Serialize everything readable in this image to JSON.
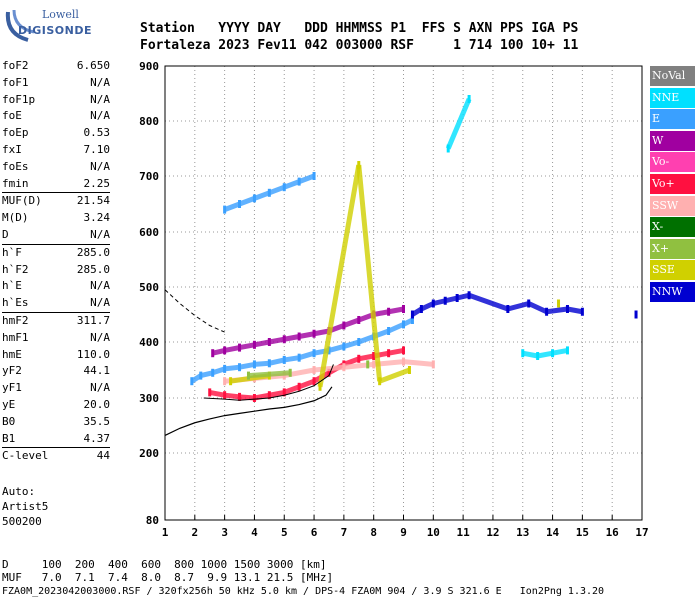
{
  "logo": {
    "line1": "Lowell",
    "line2": "DIGISONDE"
  },
  "header": {
    "line1": "Station   YYYY DAY   DDD HHMMSS P1  FFS S AXN PPS IGA PS",
    "line2": "Fortaleza 2023 Fev11 042 003000 RSF     1 714 100 10+ 11"
  },
  "params": [
    {
      "name": "foF2",
      "value": "6.650"
    },
    {
      "name": "foF1",
      "value": "N/A"
    },
    {
      "name": "foF1p",
      "value": "N/A"
    },
    {
      "name": "foE",
      "value": "N/A"
    },
    {
      "name": "foEp",
      "value": "0.53"
    },
    {
      "name": "fxI",
      "value": "7.10"
    },
    {
      "name": "foEs",
      "value": "N/A"
    },
    {
      "name": "fmin",
      "value": "2.25"
    },
    {
      "name": "MUF(D)",
      "value": "21.54"
    },
    {
      "name": "M(D)",
      "value": "3.24"
    },
    {
      "name": "D",
      "value": "N/A"
    },
    {
      "name": "h`F",
      "value": "285.0"
    },
    {
      "name": "h`F2",
      "value": "285.0"
    },
    {
      "name": "h`E",
      "value": "N/A"
    },
    {
      "name": "h`Es",
      "value": "N/A"
    },
    {
      "name": "hmF2",
      "value": "311.7"
    },
    {
      "name": "hmF1",
      "value": "N/A"
    },
    {
      "name": "hmE",
      "value": "110.0"
    },
    {
      "name": "yF2",
      "value": "44.1"
    },
    {
      "name": "yF1",
      "value": "N/A"
    },
    {
      "name": "yE",
      "value": "20.0"
    },
    {
      "name": "B0",
      "value": "35.5"
    },
    {
      "name": "B1",
      "value": "4.37"
    },
    {
      "name": "C-level",
      "value": "44"
    }
  ],
  "auto": {
    "line1": "Auto:",
    "line2": "Artist5",
    "line3": "500200"
  },
  "legend": [
    {
      "label": "NoVal",
      "color": "#808080"
    },
    {
      "label": "NNE",
      "color": "#00e0ff"
    },
    {
      "label": "E",
      "color": "#3aa0ff"
    },
    {
      "label": "W",
      "color": "#a000a0"
    },
    {
      "label": "Vo-",
      "color": "#ff40b0"
    },
    {
      "label": "Vo+",
      "color": "#ff1040"
    },
    {
      "label": "SSW",
      "color": "#ffb0b0"
    },
    {
      "label": "X-",
      "color": "#007000"
    },
    {
      "label": "X+",
      "color": "#90c040"
    },
    {
      "label": "SSE",
      "color": "#d0d000"
    },
    {
      "label": "NNW",
      "color": "#0000d0"
    }
  ],
  "footer": {
    "line1": "D     100  200  400  600  800 1000 1500 3000 [km]",
    "line2": "MUF   7.0  7.1  7.4  8.0  8.7  9.9 13.1 21.5 [MHz]",
    "line3": "FZA0M_2023042003000.RSF / 320fx256h 50 kHz 5.0 km / DPS-4 FZA0M 904 / 3.9 S 321.6 E   Ion2Png 1.3.20"
  },
  "chart_data": {
    "type": "scatter",
    "xlabel": "",
    "ylabel": "",
    "xlim": [
      1,
      17
    ],
    "ylim": [
      80,
      900
    ],
    "x_ticks": [
      1,
      2,
      3,
      4,
      5,
      6,
      7,
      8,
      9,
      10,
      11,
      12,
      13,
      14,
      15,
      16,
      17
    ],
    "y_ticks": [
      80,
      200,
      300,
      400,
      500,
      600,
      700,
      800,
      900
    ],
    "grid": true,
    "series": [
      {
        "name": "E",
        "color": "#3aa0ff",
        "points": [
          [
            1.9,
            330
          ],
          [
            2.2,
            340
          ],
          [
            2.6,
            345
          ],
          [
            3.0,
            352
          ],
          [
            3.5,
            355
          ],
          [
            4.0,
            360
          ],
          [
            4.5,
            362
          ],
          [
            5.0,
            368
          ],
          [
            5.5,
            372
          ],
          [
            6.0,
            380
          ],
          [
            6.5,
            385
          ],
          [
            7.0,
            392
          ],
          [
            7.5,
            400
          ],
          [
            8.0,
            410
          ],
          [
            8.5,
            420
          ],
          [
            9.0,
            432
          ],
          [
            9.3,
            440
          ]
        ]
      },
      {
        "name": "E",
        "color": "#3aa0ff",
        "points": [
          [
            3.0,
            640
          ],
          [
            3.5,
            650
          ],
          [
            4.0,
            660
          ],
          [
            4.5,
            670
          ],
          [
            5.0,
            680
          ],
          [
            5.5,
            690
          ],
          [
            6.0,
            700
          ]
        ]
      },
      {
        "name": "Vo+",
        "color": "#ff1040",
        "points": [
          [
            2.5,
            310
          ],
          [
            3.0,
            305
          ],
          [
            3.5,
            302
          ],
          [
            4.0,
            300
          ],
          [
            4.5,
            305
          ],
          [
            5.0,
            310
          ],
          [
            5.5,
            320
          ],
          [
            6.0,
            330
          ],
          [
            6.5,
            345
          ],
          [
            7.0,
            360
          ],
          [
            7.5,
            370
          ],
          [
            8.0,
            375
          ],
          [
            8.5,
            380
          ],
          [
            9.0,
            385
          ]
        ]
      },
      {
        "name": "W",
        "color": "#a000a0",
        "points": [
          [
            2.6,
            380
          ],
          [
            3.0,
            385
          ],
          [
            3.5,
            390
          ],
          [
            4.0,
            395
          ],
          [
            4.5,
            400
          ],
          [
            5.0,
            405
          ],
          [
            5.5,
            410
          ],
          [
            6.0,
            415
          ],
          [
            6.5,
            420
          ],
          [
            7.0,
            430
          ],
          [
            7.5,
            440
          ],
          [
            8.0,
            450
          ],
          [
            8.5,
            455
          ],
          [
            9.0,
            460
          ]
        ]
      },
      {
        "name": "SSW",
        "color": "#ffb0b0",
        "points": [
          [
            3.0,
            330
          ],
          [
            4.0,
            335
          ],
          [
            5.0,
            340
          ],
          [
            6.0,
            350
          ],
          [
            7.0,
            355
          ],
          [
            8.0,
            360
          ],
          [
            9.0,
            365
          ],
          [
            10.0,
            360
          ]
        ]
      },
      {
        "name": "NNW",
        "color": "#0000d0",
        "points": [
          [
            9.3,
            450
          ],
          [
            9.6,
            460
          ],
          [
            10.0,
            470
          ],
          [
            10.4,
            475
          ],
          [
            10.8,
            480
          ],
          [
            11.2,
            485
          ],
          [
            12.5,
            460
          ],
          [
            13.2,
            470
          ],
          [
            13.8,
            455
          ],
          [
            14.5,
            460
          ],
          [
            15.0,
            455
          ],
          [
            16.8,
            450
          ]
        ]
      },
      {
        "name": "NNE",
        "color": "#00e0ff",
        "points": [
          [
            13.0,
            380
          ],
          [
            13.5,
            375
          ],
          [
            14.0,
            380
          ],
          [
            14.5,
            385
          ],
          [
            11.2,
            840
          ],
          [
            10.5,
            750
          ]
        ]
      },
      {
        "name": "SSE",
        "color": "#d0d000",
        "points": [
          [
            3.2,
            330
          ],
          [
            4.5,
            340
          ],
          [
            6.2,
            320
          ],
          [
            7.5,
            720
          ],
          [
            8.2,
            330
          ],
          [
            9.2,
            350
          ],
          [
            14.2,
            470
          ]
        ]
      },
      {
        "name": "X+",
        "color": "#90c040",
        "points": [
          [
            3.8,
            340
          ],
          [
            5.2,
            345
          ],
          [
            7.8,
            360
          ]
        ]
      }
    ]
  }
}
